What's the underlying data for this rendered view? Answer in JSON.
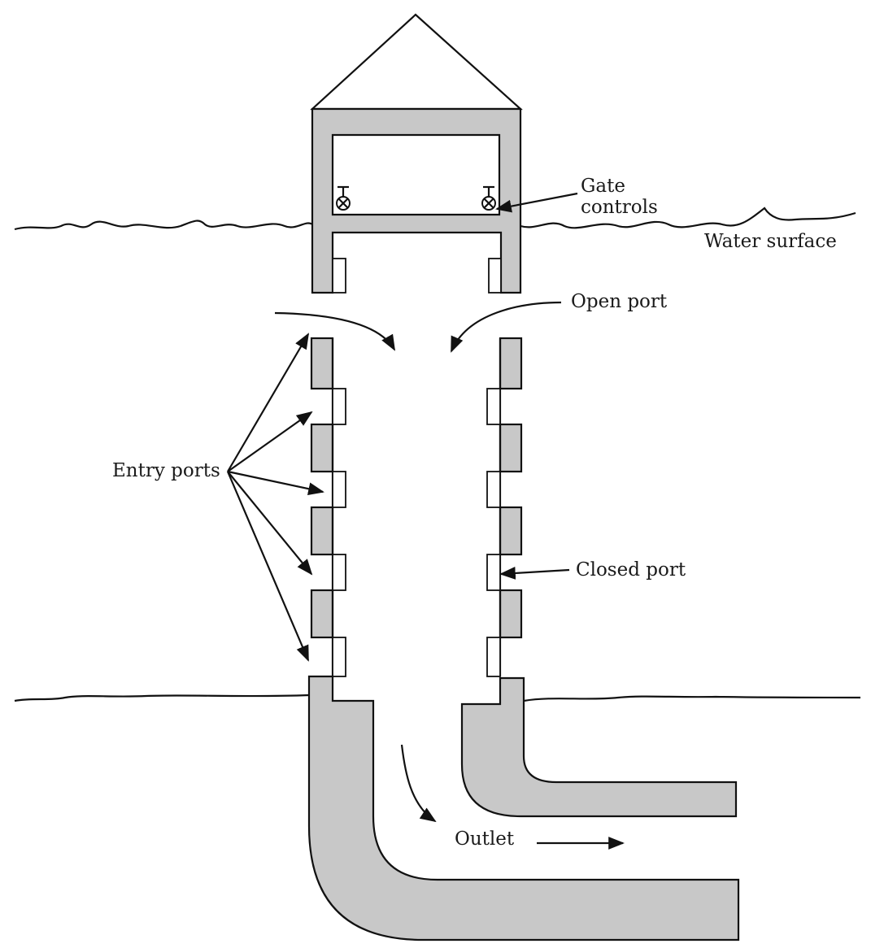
{
  "labels": {
    "gate_controls_line1": "Gate",
    "gate_controls_line2": "controls",
    "water_surface": "Water surface",
    "open_port": "Open port",
    "entry_ports": "Entry ports",
    "closed_port": "Closed port",
    "outlet": "Outlet"
  },
  "colors": {
    "concrete": "#c8c8c8",
    "line": "#111111"
  }
}
